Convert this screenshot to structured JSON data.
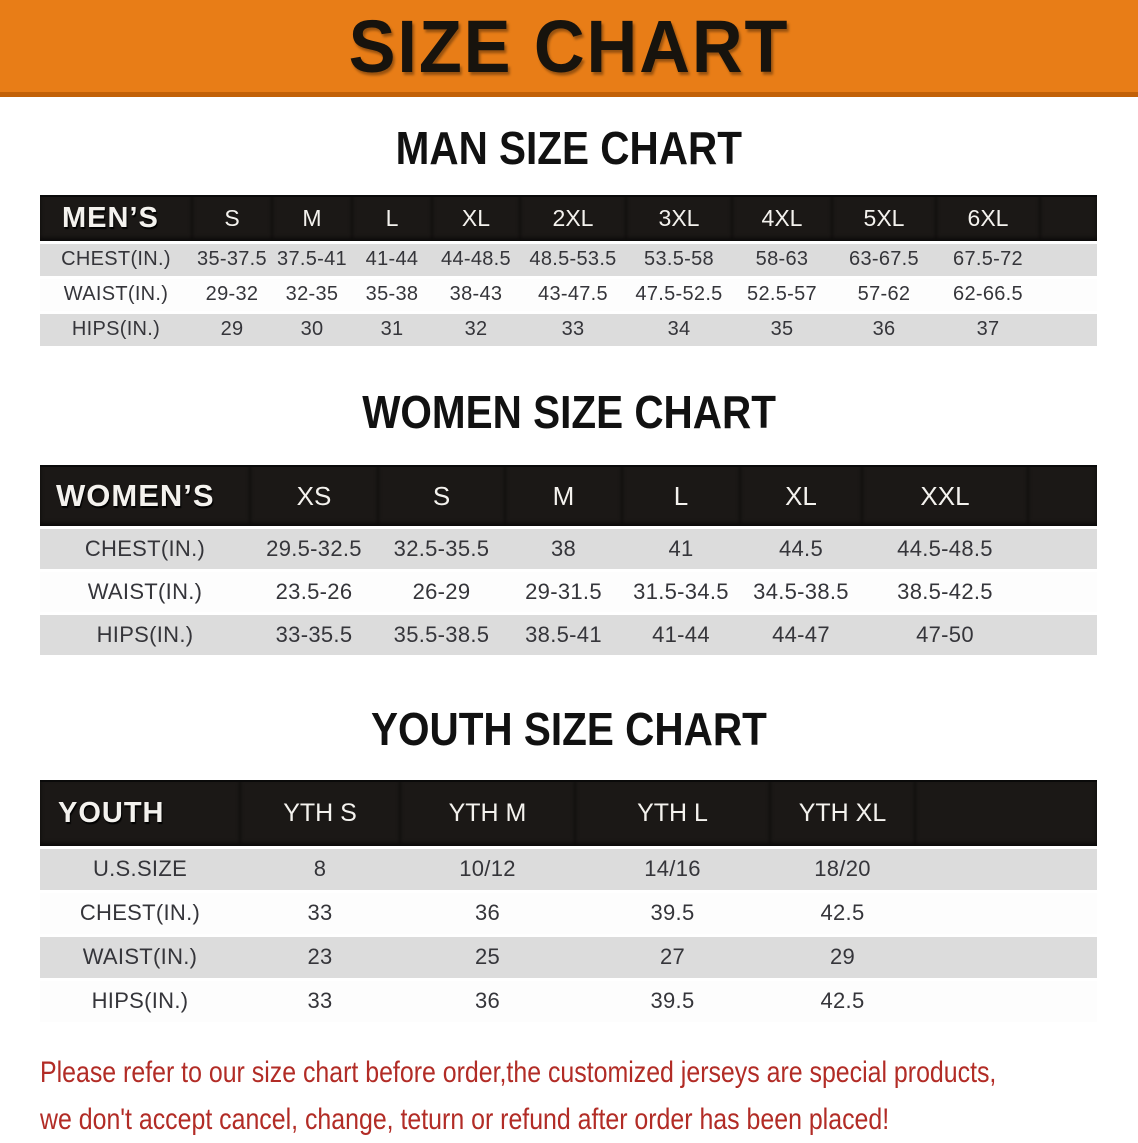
{
  "banner": {
    "title": "SIZE CHART"
  },
  "colors": {
    "accent-orange": "#E87D17",
    "banner-edge": "#C26108",
    "header-black": "#1B1816",
    "row-gray": "#DCDCDC",
    "notice-red": "#B22C26",
    "heading-black": "#111111",
    "cell-text": "#35353A"
  },
  "sections": {
    "men": {
      "heading": "MAN SIZE CHART",
      "table": {
        "id": "mens",
        "label": "MEN’S",
        "columns": [
          "S",
          "M",
          "L",
          "XL",
          "2XL",
          "3XL",
          "4XL",
          "5XL",
          "6XL"
        ],
        "rows": [
          {
            "label": "CHEST(IN.)",
            "values": [
              "35-37.5",
              "37.5-41",
              "41-44",
              "44-48.5",
              "48.5-53.5",
              "53.5-58",
              "58-63",
              "63-67.5",
              "67.5-72"
            ]
          },
          {
            "label": "WAIST(IN.)",
            "values": [
              "29-32",
              "32-35",
              "35-38",
              "38-43",
              "43-47.5",
              "47.5-52.5",
              "52.5-57",
              "57-62",
              "62-66.5"
            ]
          },
          {
            "label": "HIPS(IN.)",
            "values": [
              "29",
              "30",
              "31",
              "32",
              "33",
              "34",
              "35",
              "36",
              "37"
            ]
          }
        ]
      }
    },
    "women": {
      "heading": "WOMEN SIZE CHART",
      "table": {
        "id": "womens",
        "label": "WOMEN’S",
        "columns": [
          "XS",
          "S",
          "M",
          "L",
          "XL",
          "XXL"
        ],
        "rows": [
          {
            "label": "CHEST(IN.)",
            "values": [
              "29.5-32.5",
              "32.5-35.5",
              "38",
              "41",
              "44.5",
              "44.5-48.5"
            ]
          },
          {
            "label": "WAIST(IN.)",
            "values": [
              "23.5-26",
              "26-29",
              "29-31.5",
              "31.5-34.5",
              "34.5-38.5",
              "38.5-42.5"
            ]
          },
          {
            "label": "HIPS(IN.)",
            "values": [
              "33-35.5",
              "35.5-38.5",
              "38.5-41",
              "41-44",
              "44-47",
              "47-50"
            ]
          }
        ]
      }
    },
    "youth": {
      "heading": "YOUTH SIZE CHART",
      "table": {
        "id": "youth",
        "label": "YOUTH",
        "columns": [
          "YTH S",
          "YTH M",
          "YTH L",
          "YTH XL"
        ],
        "rows": [
          {
            "label": "U.S.SIZE",
            "values": [
              "8",
              "10/12",
              "14/16",
              "18/20"
            ]
          },
          {
            "label": "CHEST(IN.)",
            "values": [
              "33",
              "36",
              "39.5",
              "42.5"
            ]
          },
          {
            "label": "WAIST(IN.)",
            "values": [
              "23",
              "25",
              "27",
              "29"
            ]
          },
          {
            "label": "HIPS(IN.)",
            "values": [
              "33",
              "36",
              "39.5",
              "42.5"
            ]
          }
        ]
      }
    }
  },
  "notice": {
    "lines": [
      "Please refer to our size chart before order,the customized jerseys are special products,",
      "we don't accept cancel, change, teturn or refund after order has been placed!"
    ]
  }
}
